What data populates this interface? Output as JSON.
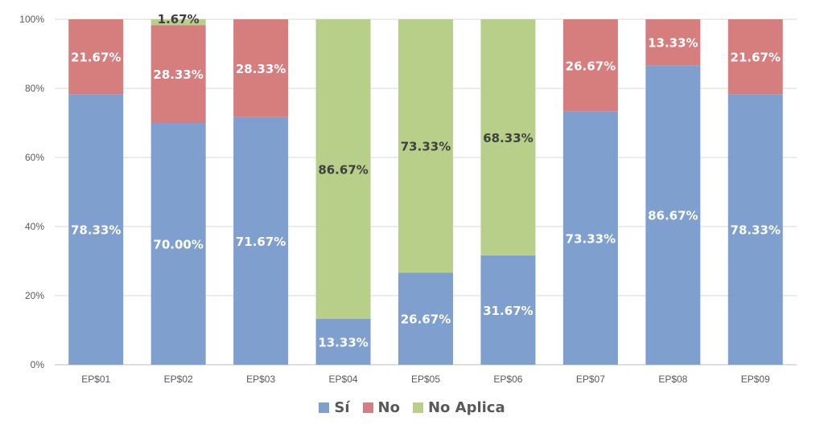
{
  "chart_data": {
    "type": "bar",
    "stacked": true,
    "percent_stacked": true,
    "categories": [
      "EP$01",
      "EP$02",
      "EP$03",
      "EP$04",
      "EP$05",
      "EP$06",
      "EP$07",
      "EP$08",
      "EP$09"
    ],
    "series": [
      {
        "name": "Sí",
        "color": "#7F9FCE",
        "values": [
          78.33,
          70.0,
          71.67,
          13.33,
          26.67,
          31.67,
          73.33,
          86.67,
          78.33
        ],
        "labels": [
          "78.33%",
          "70.00%",
          "71.67%",
          "13.33%",
          "26.67%",
          "31.67%",
          "73.33%",
          "86.67%",
          "78.33%"
        ]
      },
      {
        "name": "No",
        "color": "#D67D7D",
        "values": [
          21.67,
          28.33,
          28.33,
          0,
          0,
          0,
          26.67,
          13.33,
          21.67
        ],
        "labels": [
          "21.67%",
          "28.33%",
          "28.33%",
          "",
          "",
          "",
          "26.67%",
          "13.33%",
          "21.67%"
        ]
      },
      {
        "name": "No Aplica",
        "color": "#B8CF89",
        "values": [
          0,
          1.67,
          0,
          86.67,
          73.33,
          68.33,
          0,
          0,
          0
        ],
        "labels": [
          "",
          "1.67%",
          "",
          "86.67%",
          "73.33%",
          "68.33%",
          "",
          "",
          ""
        ]
      }
    ],
    "label_colors": {
      "Sí": "#ffffff",
      "No": "#ffffff",
      "No Aplica": "#404040"
    },
    "ylim": [
      0,
      100
    ],
    "y_ticks": [
      "0%",
      "20%",
      "40%",
      "60%",
      "80%",
      "100%"
    ],
    "y_tick_values": [
      0,
      20,
      40,
      60,
      80,
      100
    ],
    "grid": true,
    "legend_position": "bottom",
    "title": "",
    "xlabel": "",
    "ylabel": ""
  }
}
